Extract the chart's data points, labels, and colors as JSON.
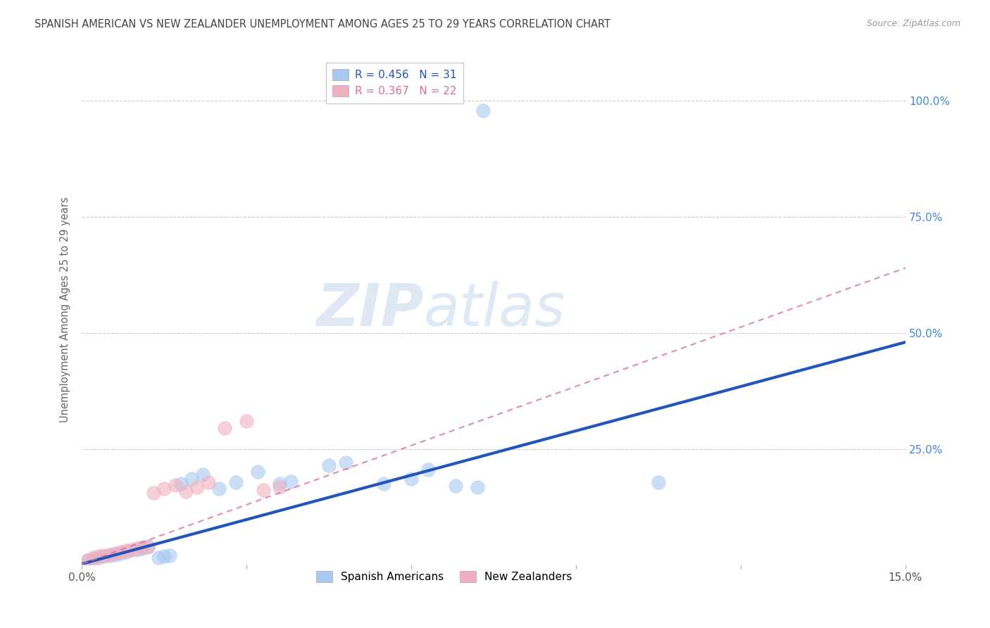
{
  "title": "SPANISH AMERICAN VS NEW ZEALANDER UNEMPLOYMENT AMONG AGES 25 TO 29 YEARS CORRELATION CHART",
  "source": "Source: ZipAtlas.com",
  "ylabel": "Unemployment Among Ages 25 to 29 years",
  "xlim": [
    0.0,
    0.15
  ],
  "ylim": [
    0.0,
    1.1
  ],
  "xticks": [
    0.0,
    0.03,
    0.06,
    0.09,
    0.12,
    0.15
  ],
  "xticklabels": [
    "0.0%",
    "",
    "",
    "",
    "",
    "15.0%"
  ],
  "yticks": [
    0.0,
    0.25,
    0.5,
    0.75,
    1.0
  ],
  "yticklabels": [
    "",
    "25.0%",
    "50.0%",
    "75.0%",
    "100.0%"
  ],
  "watermark_zip": "ZIP",
  "watermark_atlas": "atlas",
  "blue_R": 0.456,
  "blue_N": 31,
  "pink_R": 0.367,
  "pink_N": 22,
  "blue_color": "#a8c8f0",
  "pink_color": "#f0b0c0",
  "blue_line_color": "#2255bb",
  "pink_line_color": "#dd7090",
  "grid_color": "#cccccc",
  "title_color": "#444444",
  "legend_blue_label": "Spanish Americans",
  "legend_pink_label": "New Zealanders",
  "blue_points_x": [
    0.001,
    0.002,
    0.003,
    0.004,
    0.005,
    0.006,
    0.007,
    0.008,
    0.01,
    0.011,
    0.012,
    0.014,
    0.015,
    0.016,
    0.018,
    0.02,
    0.022,
    0.025,
    0.028,
    0.032,
    0.036,
    0.038,
    0.045,
    0.048,
    0.055,
    0.06,
    0.063,
    0.068,
    0.072,
    0.105,
    0.073
  ],
  "blue_points_y": [
    0.01,
    0.012,
    0.015,
    0.018,
    0.02,
    0.022,
    0.025,
    0.028,
    0.032,
    0.035,
    0.038,
    0.015,
    0.018,
    0.02,
    0.175,
    0.185,
    0.195,
    0.165,
    0.178,
    0.2,
    0.175,
    0.18,
    0.215,
    0.22,
    0.175,
    0.185,
    0.205,
    0.17,
    0.168,
    0.178,
    0.98
  ],
  "pink_points_x": [
    0.001,
    0.002,
    0.003,
    0.004,
    0.005,
    0.006,
    0.007,
    0.008,
    0.009,
    0.01,
    0.011,
    0.012,
    0.013,
    0.015,
    0.017,
    0.019,
    0.021,
    0.023,
    0.026,
    0.03,
    0.033,
    0.036
  ],
  "pink_points_y": [
    0.01,
    0.015,
    0.018,
    0.02,
    0.022,
    0.025,
    0.028,
    0.03,
    0.032,
    0.035,
    0.038,
    0.04,
    0.155,
    0.165,
    0.172,
    0.158,
    0.168,
    0.178,
    0.295,
    0.31,
    0.162,
    0.168
  ],
  "blue_line_x": [
    0.0,
    0.15
  ],
  "blue_line_y": [
    0.002,
    0.48
  ],
  "pink_line_x": [
    0.0,
    0.15
  ],
  "pink_line_y": [
    0.002,
    0.64
  ]
}
